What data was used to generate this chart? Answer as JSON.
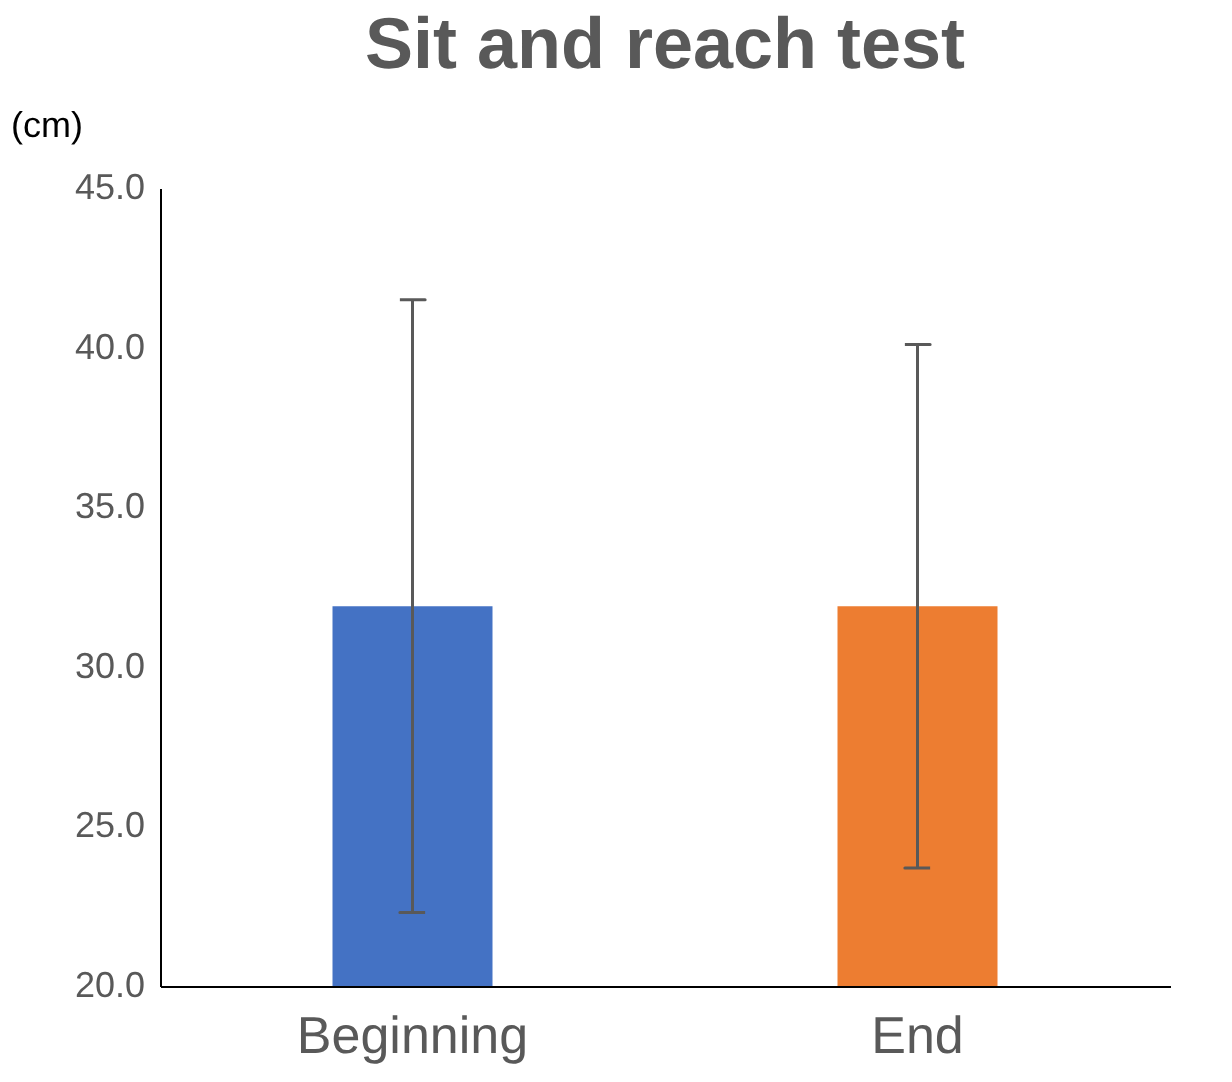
{
  "chart_data": {
    "type": "bar",
    "title": "Sit and reach test",
    "ylabel": "(cm)",
    "categories": [
      "Beginning",
      "End"
    ],
    "values": [
      31.9,
      31.9
    ],
    "colors": [
      "#4472c4",
      "#ed7d31"
    ],
    "errors": [
      9.6,
      8.2
    ],
    "ylim": [
      20,
      45
    ],
    "yticks": [
      {
        "value": 20,
        "label": "20.0"
      },
      {
        "value": 25,
        "label": "25.0"
      },
      {
        "value": 30,
        "label": "30.0"
      },
      {
        "value": 35,
        "label": "35.0"
      },
      {
        "value": 40,
        "label": "40.0"
      },
      {
        "value": 45,
        "label": "45.0"
      }
    ],
    "grid": false
  }
}
